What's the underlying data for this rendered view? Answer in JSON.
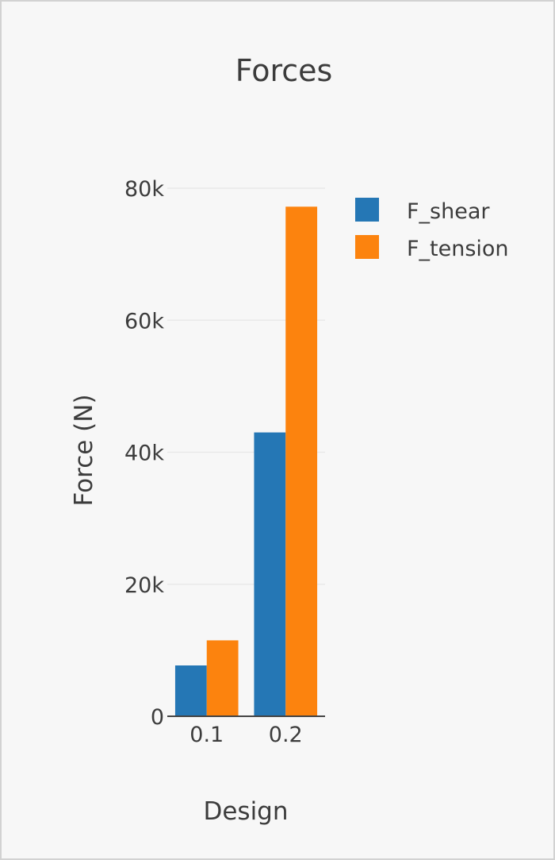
{
  "chart_data": {
    "type": "bar",
    "title": "Forces",
    "xlabel": "Design",
    "ylabel": "Force (N)",
    "categories": [
      "0.1",
      "0.2"
    ],
    "series": [
      {
        "name": "F_shear",
        "color": "#2577b5",
        "values": [
          7700,
          43000
        ]
      },
      {
        "name": "F_tension",
        "color": "#fc830e",
        "values": [
          11500,
          77200
        ]
      }
    ],
    "ylim": [
      0,
      80000
    ],
    "yticks": [
      0,
      20000,
      40000,
      60000,
      80000
    ],
    "ytick_labels": [
      "0",
      "20k",
      "40k",
      "60k",
      "80k"
    ],
    "grid": true,
    "legend_position": "top-right"
  }
}
